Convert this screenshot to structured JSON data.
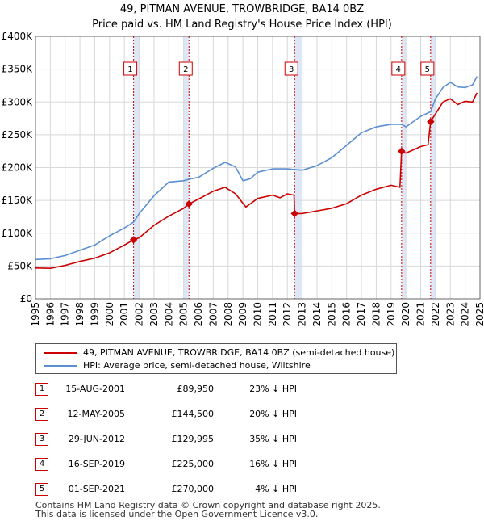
{
  "title": "49, PITMAN AVENUE, TROWBRIDGE, BA14 0BZ",
  "subtitle": "Price paid vs. HM Land Registry's House Price Index (HPI)",
  "colors": {
    "property": "#cc0000",
    "hpi": "#5b8fd1",
    "grid": "#d8d8d8",
    "shade": "#dde7f5",
    "marker_line": "#cc0000"
  },
  "legend": {
    "property_label": "49, PITMAN AVENUE, TROWBRIDGE, BA14 0BZ (semi-detached house)",
    "hpi_label": "HPI: Average price, semi-detached house, Wiltshire"
  },
  "sales": [
    {
      "num": "1",
      "date": "15-AUG-2001",
      "price": "£89,950",
      "hpi": "23% ↓ HPI",
      "x": 2001.62,
      "y": 89950
    },
    {
      "num": "2",
      "date": "12-MAY-2005",
      "price": "£144,500",
      "hpi": "20% ↓ HPI",
      "x": 2005.36,
      "y": 144500
    },
    {
      "num": "3",
      "date": "29-JUN-2012",
      "price": "£129,995",
      "hpi": "35% ↓ HPI",
      "x": 2012.49,
      "y": 129995
    },
    {
      "num": "4",
      "date": "16-SEP-2019",
      "price": "£225,000",
      "hpi": "16% ↓ HPI",
      "x": 2019.71,
      "y": 225000
    },
    {
      "num": "5",
      "date": "01-SEP-2021",
      "price": "£270,000",
      "hpi": "4% ↓ HPI",
      "x": 2021.67,
      "y": 270000
    }
  ],
  "footer": {
    "line1": "Contains HM Land Registry data © Crown copyright and database right 2025.",
    "line2": "This data is licensed under the Open Government Licence v3.0."
  },
  "chart_data": {
    "type": "line",
    "title": "49, PITMAN AVENUE, TROWBRIDGE, BA14 0BZ",
    "subtitle": "Price paid vs. HM Land Registry's House Price Index (HPI)",
    "xlabel": "",
    "ylabel": "",
    "xlim": [
      1995,
      2025
    ],
    "ylim": [
      0,
      400000
    ],
    "grid": true,
    "legend_position": "below",
    "yticks": [
      {
        "value": 0,
        "label": "£0"
      },
      {
        "value": 50000,
        "label": "£50K"
      },
      {
        "value": 100000,
        "label": "£100K"
      },
      {
        "value": 150000,
        "label": "£150K"
      },
      {
        "value": 200000,
        "label": "£200K"
      },
      {
        "value": 250000,
        "label": "£250K"
      },
      {
        "value": 300000,
        "label": "£300K"
      },
      {
        "value": 350000,
        "label": "£350K"
      },
      {
        "value": 400000,
        "label": "£400K"
      }
    ],
    "xticks": [
      "1995",
      "1996",
      "1997",
      "1998",
      "1999",
      "2000",
      "2001",
      "2002",
      "2003",
      "2004",
      "2005",
      "2006",
      "2007",
      "2008",
      "2009",
      "2010",
      "2011",
      "2012",
      "2013",
      "2014",
      "2015",
      "2016",
      "2017",
      "2018",
      "2019",
      "2020",
      "2021",
      "2022",
      "2023",
      "2024",
      "2025"
    ],
    "shaded_spans": [
      [
        2001.62,
        2002.0
      ],
      [
        2005.0,
        2005.36
      ],
      [
        2012.49,
        2013.0
      ],
      [
        2019.71,
        2020.0
      ],
      [
        2021.67,
        2022.0
      ]
    ],
    "series": [
      {
        "name": "49, PITMAN AVENUE, TROWBRIDGE, BA14 0BZ (semi-detached house)",
        "color": "#cc0000",
        "points": [
          [
            1995.0,
            47000
          ],
          [
            1996.0,
            46500
          ],
          [
            1997.0,
            51000
          ],
          [
            1998.0,
            57000
          ],
          [
            1999.0,
            62000
          ],
          [
            2000.0,
            70000
          ],
          [
            2001.0,
            82000
          ],
          [
            2001.62,
            89950
          ],
          [
            2002.0,
            93000
          ],
          [
            2003.0,
            112000
          ],
          [
            2004.0,
            126000
          ],
          [
            2005.0,
            138000
          ],
          [
            2005.36,
            144500
          ],
          [
            2006.0,
            152000
          ],
          [
            2007.0,
            164000
          ],
          [
            2007.8,
            170000
          ],
          [
            2008.5,
            160000
          ],
          [
            2009.2,
            140000
          ],
          [
            2010.0,
            153000
          ],
          [
            2011.0,
            158000
          ],
          [
            2011.5,
            154000
          ],
          [
            2012.0,
            160000
          ],
          [
            2012.45,
            158000
          ],
          [
            2012.49,
            129995
          ],
          [
            2013.0,
            130000
          ],
          [
            2014.0,
            134000
          ],
          [
            2015.0,
            138000
          ],
          [
            2016.0,
            145000
          ],
          [
            2017.0,
            158000
          ],
          [
            2018.0,
            167000
          ],
          [
            2019.0,
            173000
          ],
          [
            2019.6,
            170000
          ],
          [
            2019.71,
            225000
          ],
          [
            2020.0,
            222000
          ],
          [
            2021.0,
            232000
          ],
          [
            2021.5,
            235000
          ],
          [
            2021.67,
            270000
          ],
          [
            2022.0,
            282000
          ],
          [
            2022.5,
            300000
          ],
          [
            2023.0,
            305000
          ],
          [
            2023.5,
            296000
          ],
          [
            2024.0,
            301000
          ],
          [
            2024.5,
            300000
          ],
          [
            2024.8,
            314000
          ]
        ]
      },
      {
        "name": "HPI: Average price, semi-detached house, Wiltshire",
        "color": "#5b8fd1",
        "points": [
          [
            1995.0,
            60000
          ],
          [
            1996.0,
            61000
          ],
          [
            1997.0,
            66000
          ],
          [
            1998.0,
            74000
          ],
          [
            1999.0,
            82000
          ],
          [
            2000.0,
            96000
          ],
          [
            2001.0,
            108000
          ],
          [
            2001.62,
            117000
          ],
          [
            2002.0,
            130000
          ],
          [
            2003.0,
            157000
          ],
          [
            2004.0,
            178000
          ],
          [
            2005.0,
            180000
          ],
          [
            2005.5,
            183000
          ],
          [
            2006.0,
            185000
          ],
          [
            2007.0,
            199000
          ],
          [
            2007.8,
            208000
          ],
          [
            2008.5,
            201000
          ],
          [
            2009.0,
            180000
          ],
          [
            2009.5,
            183000
          ],
          [
            2010.0,
            193000
          ],
          [
            2011.0,
            198000
          ],
          [
            2012.0,
            198000
          ],
          [
            2012.5,
            197000
          ],
          [
            2013.0,
            196000
          ],
          [
            2014.0,
            203000
          ],
          [
            2015.0,
            215000
          ],
          [
            2016.0,
            234000
          ],
          [
            2017.0,
            253000
          ],
          [
            2018.0,
            262000
          ],
          [
            2019.0,
            266000
          ],
          [
            2019.7,
            266000
          ],
          [
            2020.0,
            262000
          ],
          [
            2021.0,
            278000
          ],
          [
            2021.67,
            285000
          ],
          [
            2022.0,
            305000
          ],
          [
            2022.5,
            322000
          ],
          [
            2023.0,
            330000
          ],
          [
            2023.5,
            323000
          ],
          [
            2024.0,
            322000
          ],
          [
            2024.5,
            326000
          ],
          [
            2024.8,
            339000
          ]
        ]
      }
    ]
  }
}
